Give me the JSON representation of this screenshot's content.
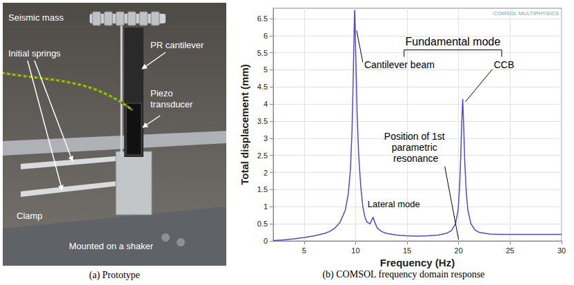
{
  "chart_data": {
    "type": "line",
    "title": "(b) COMSOL frequency domain response",
    "xlabel": "Frequency (Hz)",
    "ylabel": "Total displacement (mm)",
    "x": [
      2,
      3,
      4,
      5,
      6,
      7,
      7.5,
      8,
      8.5,
      9,
      9.3,
      9.5,
      9.65,
      9.75,
      9.85,
      9.9,
      9.95,
      10.05,
      10.15,
      10.3,
      10.5,
      10.7,
      10.9,
      11.1,
      11.4,
      11.55,
      11.7,
      11.85,
      12.1,
      12.5,
      13,
      14,
      15,
      16,
      17,
      18,
      18.8,
      19.3,
      19.7,
      19.95,
      20.1,
      20.2,
      20.3,
      20.4,
      20.5,
      20.6,
      20.75,
      20.9,
      21.2,
      21.6,
      22,
      23,
      24,
      26,
      28,
      30
    ],
    "values": [
      0.01,
      0.03,
      0.06,
      0.1,
      0.15,
      0.22,
      0.28,
      0.38,
      0.55,
      0.9,
      1.4,
      2.1,
      3.2,
      4.5,
      6.0,
      6.75,
      6.3,
      5.0,
      3.7,
      2.5,
      1.6,
      1.0,
      0.7,
      0.55,
      0.5,
      0.6,
      0.7,
      0.55,
      0.38,
      0.28,
      0.22,
      0.17,
      0.15,
      0.14,
      0.15,
      0.17,
      0.22,
      0.3,
      0.5,
      0.9,
      1.6,
      2.4,
      3.4,
      4.15,
      3.3,
      2.3,
      1.4,
      0.9,
      0.5,
      0.32,
      0.25,
      0.2,
      0.19,
      0.19,
      0.19,
      0.19
    ],
    "color": "#4f46e0",
    "xlim": [
      2,
      30
    ],
    "xticks": [
      5,
      10,
      15,
      20,
      25,
      30
    ],
    "ylim": [
      0,
      6.8
    ],
    "yticks": [
      0,
      0.5,
      1,
      1.5,
      2,
      2.5,
      3,
      3.5,
      4,
      4.5,
      5,
      5.5,
      6,
      6.5
    ],
    "grid": true,
    "annotations": [
      {
        "text": "Fundamental mode"
      },
      {
        "text": "Cantilever beam",
        "x": 9.9,
        "y": 6.75
      },
      {
        "text": "CCB",
        "x": 20.4,
        "y": 4.15
      },
      {
        "text": "Lateral mode",
        "x": 11.7,
        "y": 0.7
      },
      {
        "text": "Position of 1st parametric resonance",
        "x": 20,
        "y": 0
      },
      {
        "text": "COMSOL MULTIPHYSICS"
      }
    ]
  },
  "prototype": {
    "caption": "(a) Prototype",
    "labels": [
      "Seismic mass",
      "Initial springs",
      "PR cantilever",
      "Piezo transducer",
      "Clamp",
      "Mounted on a shaker"
    ]
  }
}
